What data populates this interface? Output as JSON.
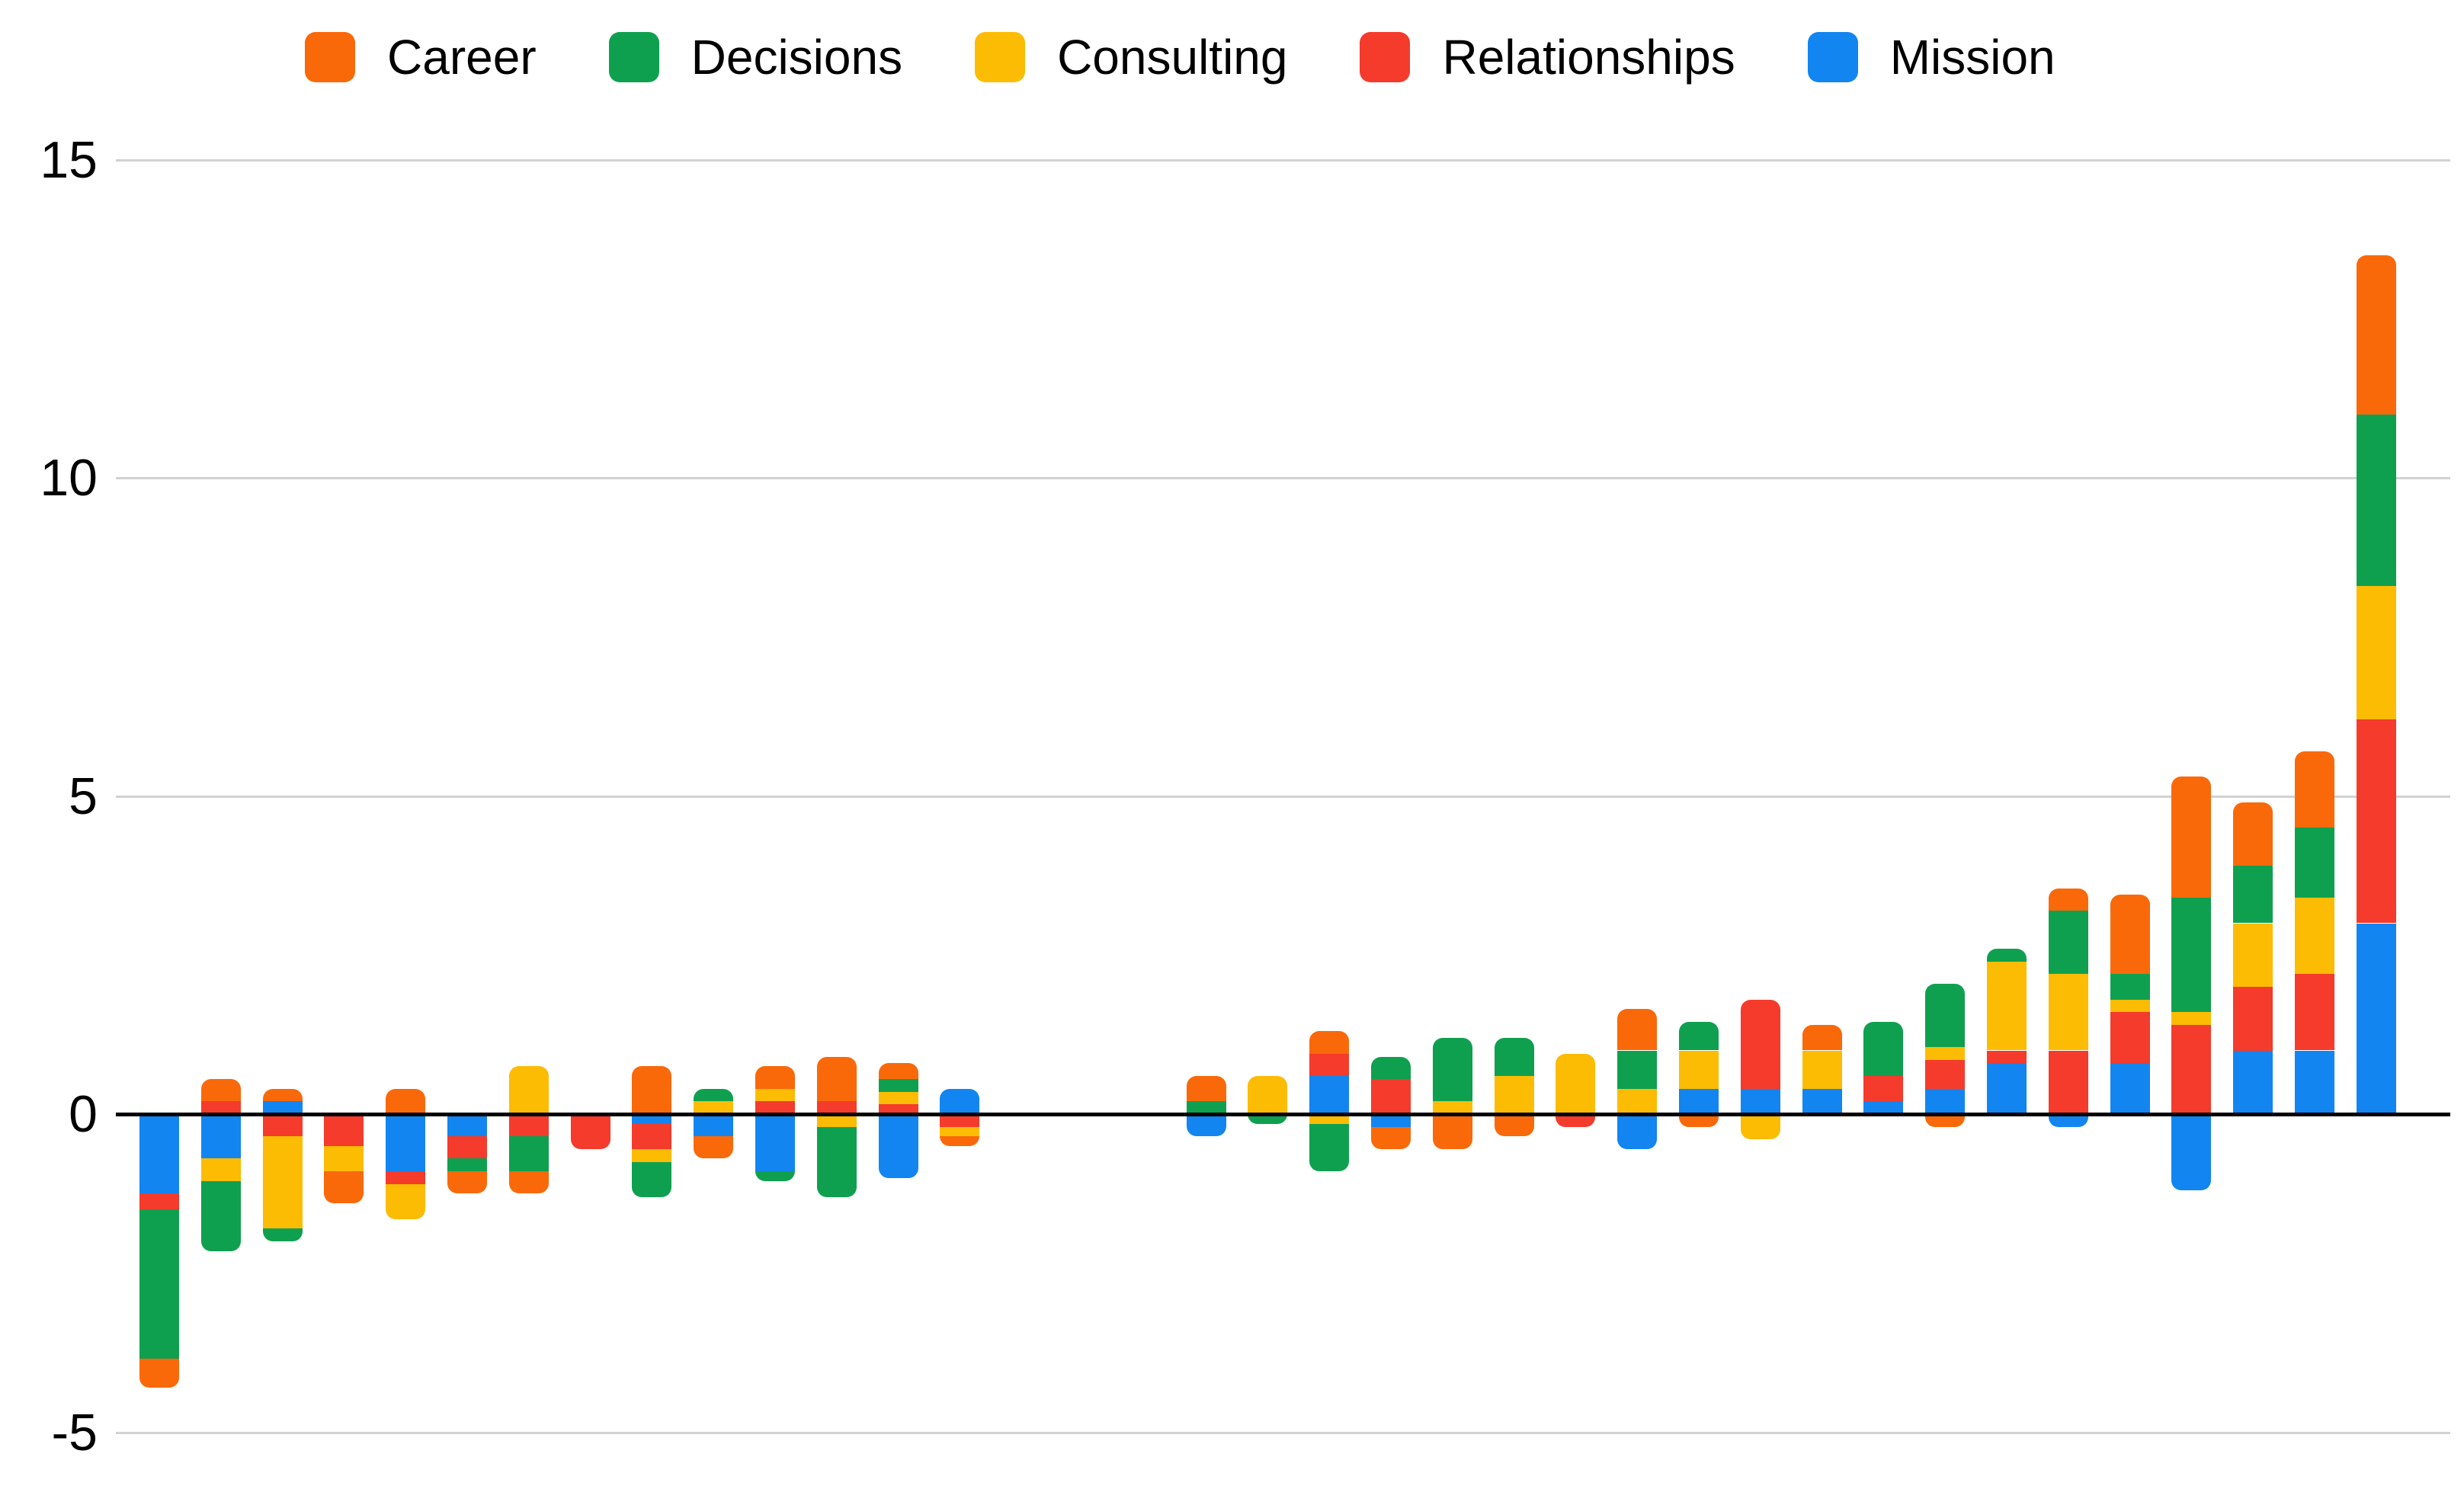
{
  "legend": {
    "position": "top",
    "items": [
      {
        "label": "Career",
        "color": "#F9690A"
      },
      {
        "label": "Decisions",
        "color": "#0FA04F"
      },
      {
        "label": "Consulting",
        "color": "#FCBC04"
      },
      {
        "label": "Relationships",
        "color": "#F43B2C"
      },
      {
        "label": "Mission",
        "color": "#1285F0"
      }
    ]
  },
  "y_axis": {
    "tick_labels": [
      "15",
      "10",
      "5",
      "0",
      "-5"
    ],
    "tick_values": [
      15,
      10,
      5,
      0,
      -5
    ]
  },
  "chart_data": {
    "type": "bar",
    "stacked": true,
    "title": "",
    "xlabel": "",
    "ylabel": "",
    "ylim": [
      -5,
      15
    ],
    "grid": true,
    "legend_position": "top",
    "bar_count": 37,
    "x_tick_labels": [],
    "empty_slots": [
      14,
      15,
      16
    ],
    "stack_order_from_axis": [
      "Mission",
      "Relationships",
      "Consulting",
      "Decisions",
      "Career"
    ],
    "series": [
      {
        "name": "Career",
        "values": [
          -0.45,
          0.35,
          0.2,
          -0.5,
          0.4,
          -0.35,
          -0.35,
          0,
          0.75,
          -0.35,
          0.35,
          0.7,
          0.25,
          -0.15,
          0,
          0,
          0,
          0.4,
          0,
          0.35,
          -0.35,
          -0.55,
          -0.35,
          0,
          0.65,
          -0.2,
          0,
          0.4,
          0,
          -0.2,
          0,
          0.35,
          1.25,
          1.9,
          1.0,
          1.2,
          2.5
        ]
      },
      {
        "name": "Decisions",
        "values": [
          -2.35,
          -1.1,
          -0.2,
          0,
          0,
          -0.2,
          -0.55,
          0,
          -0.55,
          0.2,
          -0.15,
          -1.1,
          0.2,
          0,
          0,
          0,
          0,
          0.2,
          -0.15,
          -0.75,
          0.35,
          1.0,
          0.6,
          0,
          0.6,
          0.45,
          0,
          0,
          0.85,
          1.0,
          0.2,
          1.0,
          0.4,
          1.8,
          0.9,
          1.1,
          2.7
        ]
      },
      {
        "name": "Consulting",
        "values": [
          0,
          -0.35,
          -1.45,
          -0.4,
          -0.55,
          0,
          0.75,
          0,
          -0.2,
          0.2,
          0.2,
          -0.2,
          0.2,
          -0.15,
          0,
          0,
          0,
          0,
          0.6,
          -0.15,
          0,
          0.2,
          0.6,
          0.95,
          0.4,
          0.6,
          -0.4,
          0.6,
          0,
          0.2,
          1.4,
          1.2,
          0.2,
          0.2,
          1.0,
          1.2,
          2.1
        ]
      },
      {
        "name": "Relationships",
        "values": [
          -0.25,
          0.2,
          -0.35,
          -0.5,
          -0.2,
          -0.35,
          -0.35,
          -0.55,
          -0.4,
          0,
          0.2,
          0.2,
          0.15,
          -0.2,
          0,
          0,
          0,
          0,
          0,
          0.35,
          0.55,
          0,
          0,
          -0.2,
          0,
          0,
          1.4,
          0,
          0.4,
          0.45,
          0.2,
          1.0,
          0.8,
          1.4,
          1.0,
          1.2,
          3.2
        ]
      },
      {
        "name": "Mission",
        "values": [
          -1.25,
          -0.7,
          0.2,
          0,
          -0.9,
          -0.35,
          0,
          0,
          -0.15,
          -0.35,
          -0.9,
          0,
          -1.0,
          0.4,
          0,
          0,
          0,
          -0.35,
          0,
          0.6,
          -0.2,
          0,
          0,
          0,
          -0.55,
          0.4,
          0.4,
          0.4,
          0.2,
          0.4,
          0.8,
          -0.2,
          0.8,
          -1.2,
          1.0,
          1.0,
          3.0
        ]
      }
    ]
  }
}
